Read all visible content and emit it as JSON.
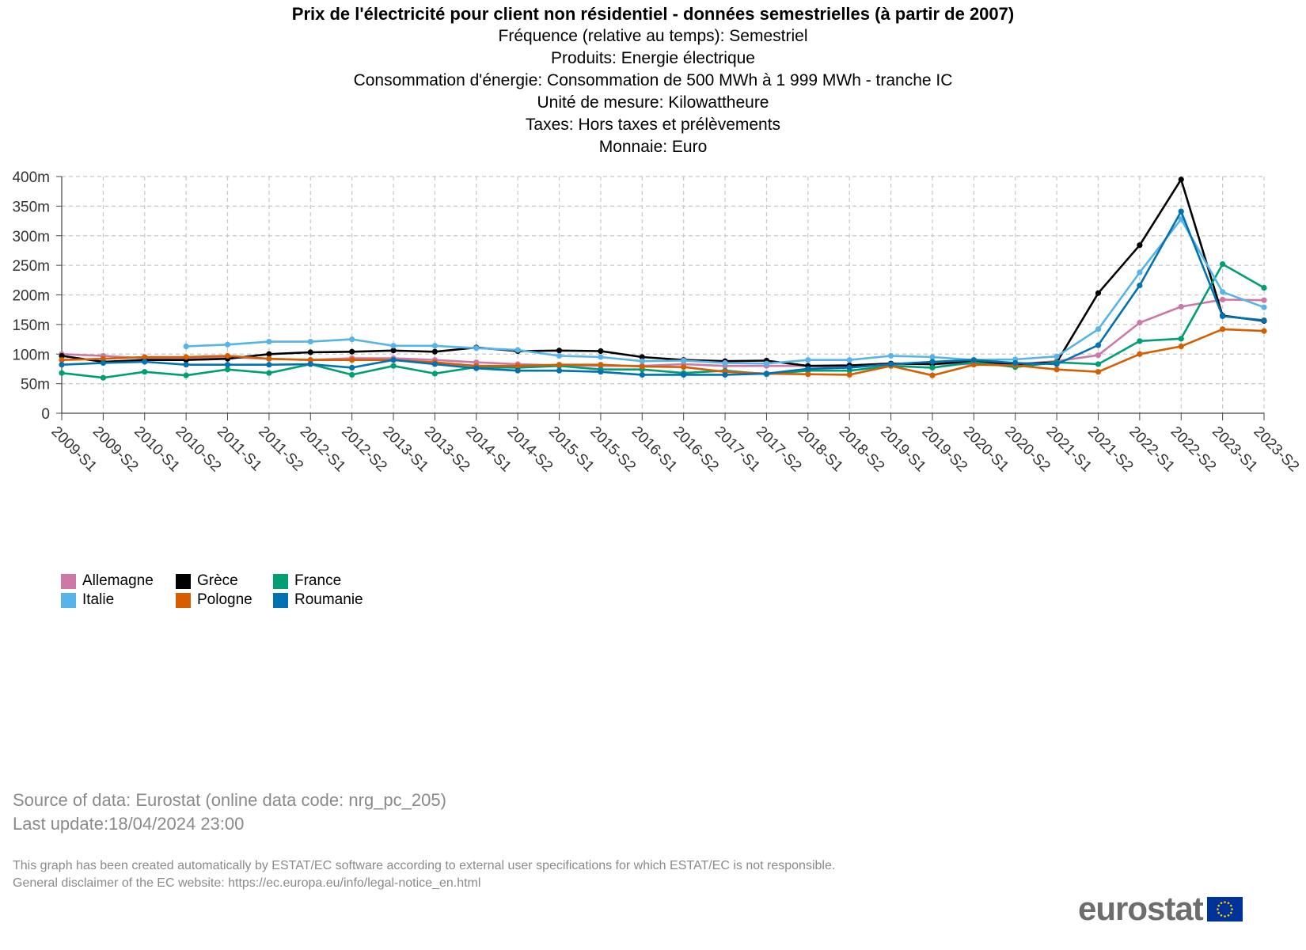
{
  "header": {
    "title": "Prix de l'électricité pour client non résidentiel - données semestrielles (à partir de 2007)",
    "subtitles": [
      "Fréquence (relative au temps): Semestriel",
      "Produits: Energie électrique",
      "Consommation d'énergie: Consommation de 500 MWh à 1 999 MWh - tranche IC",
      "Unité de mesure: Kilowattheure",
      "Taxes: Hors taxes et prélèvements",
      "Monnaie: Euro"
    ]
  },
  "chart_data": {
    "type": "line",
    "title": "Prix de l'électricité pour client non résidentiel - données semestrielles (à partir de 2007)",
    "xlabel": "",
    "ylabel": "",
    "ylim": [
      0,
      400
    ],
    "yticks": [
      "0",
      "50m",
      "100m",
      "150m",
      "200m",
      "250m",
      "300m",
      "350m",
      "400m"
    ],
    "grid": true,
    "legend_position": "bottom-left",
    "categories": [
      "2009-S1",
      "2009-S2",
      "2010-S1",
      "2010-S2",
      "2011-S1",
      "2011-S2",
      "2012-S1",
      "2012-S2",
      "2013-S1",
      "2013-S2",
      "2014-S1",
      "2014-S2",
      "2015-S1",
      "2015-S2",
      "2016-S1",
      "2016-S2",
      "2017-S1",
      "2017-S2",
      "2018-S1",
      "2018-S2",
      "2019-S1",
      "2019-S2",
      "2020-S1",
      "2020-S2",
      "2021-S1",
      "2021-S2",
      "2022-S1",
      "2022-S2",
      "2023-S1",
      "2023-S2"
    ],
    "series": [
      {
        "name": "Allemagne",
        "color": "#cc79a7",
        "values": [
          100,
          97,
          93,
          92,
          95,
          92,
          90,
          93,
          93,
          90,
          86,
          83,
          81,
          80,
          80,
          83,
          80,
          80,
          80,
          78,
          83,
          83,
          83,
          83,
          88,
          98,
          153,
          180,
          192,
          191
        ]
      },
      {
        "name": "Grèce",
        "color": "#000000",
        "values": [
          97,
          87,
          90,
          90,
          92,
          100,
          103,
          104,
          106,
          104,
          111,
          105,
          106,
          105,
          95,
          90,
          88,
          89,
          80,
          81,
          84,
          83,
          88,
          83,
          86,
          203,
          284,
          395,
          165,
          156
        ]
      },
      {
        "name": "France",
        "color": "#009e73",
        "values": [
          68,
          60,
          70,
          64,
          74,
          68,
          83,
          65,
          80,
          67,
          78,
          77,
          80,
          74,
          74,
          68,
          72,
          66,
          72,
          72,
          80,
          77,
          86,
          78,
          86,
          83,
          122,
          126,
          252,
          212
        ]
      },
      {
        "name": "Italie",
        "color": "#56b4e9",
        "values": [
          null,
          null,
          null,
          113,
          116,
          121,
          121,
          125,
          114,
          114,
          110,
          107,
          97,
          95,
          88,
          89,
          85,
          84,
          90,
          90,
          97,
          95,
          90,
          91,
          96,
          142,
          238,
          328,
          205,
          179
        ]
      },
      {
        "name": "Pologne",
        "color": "#d55e00",
        "values": [
          90,
          92,
          95,
          95,
          97,
          92,
          90,
          90,
          90,
          86,
          80,
          80,
          82,
          82,
          79,
          78,
          70,
          67,
          66,
          65,
          80,
          64,
          82,
          81,
          74,
          70,
          100,
          113,
          142,
          139
        ]
      },
      {
        "name": "Roumanie",
        "color": "#0072b2",
        "values": [
          82,
          85,
          87,
          82,
          82,
          82,
          83,
          77,
          90,
          83,
          76,
          72,
          72,
          70,
          65,
          65,
          65,
          67,
          75,
          77,
          83,
          87,
          90,
          85,
          83,
          115,
          216,
          341,
          164,
          157
        ]
      }
    ]
  },
  "footer": {
    "source": "Source of data: Eurostat (online data code: nrg_pc_205)",
    "last_update": "Last update:18/04/2024 23:00",
    "disclaimer_1": "This graph has been created automatically by ESTAT/EC software according to external user specifications for which ESTAT/EC is not responsible.",
    "disclaimer_2": "General disclaimer of the EC website: https://ec.europa.eu/info/legal-notice_en.html",
    "logo_text": "eurostat"
  }
}
